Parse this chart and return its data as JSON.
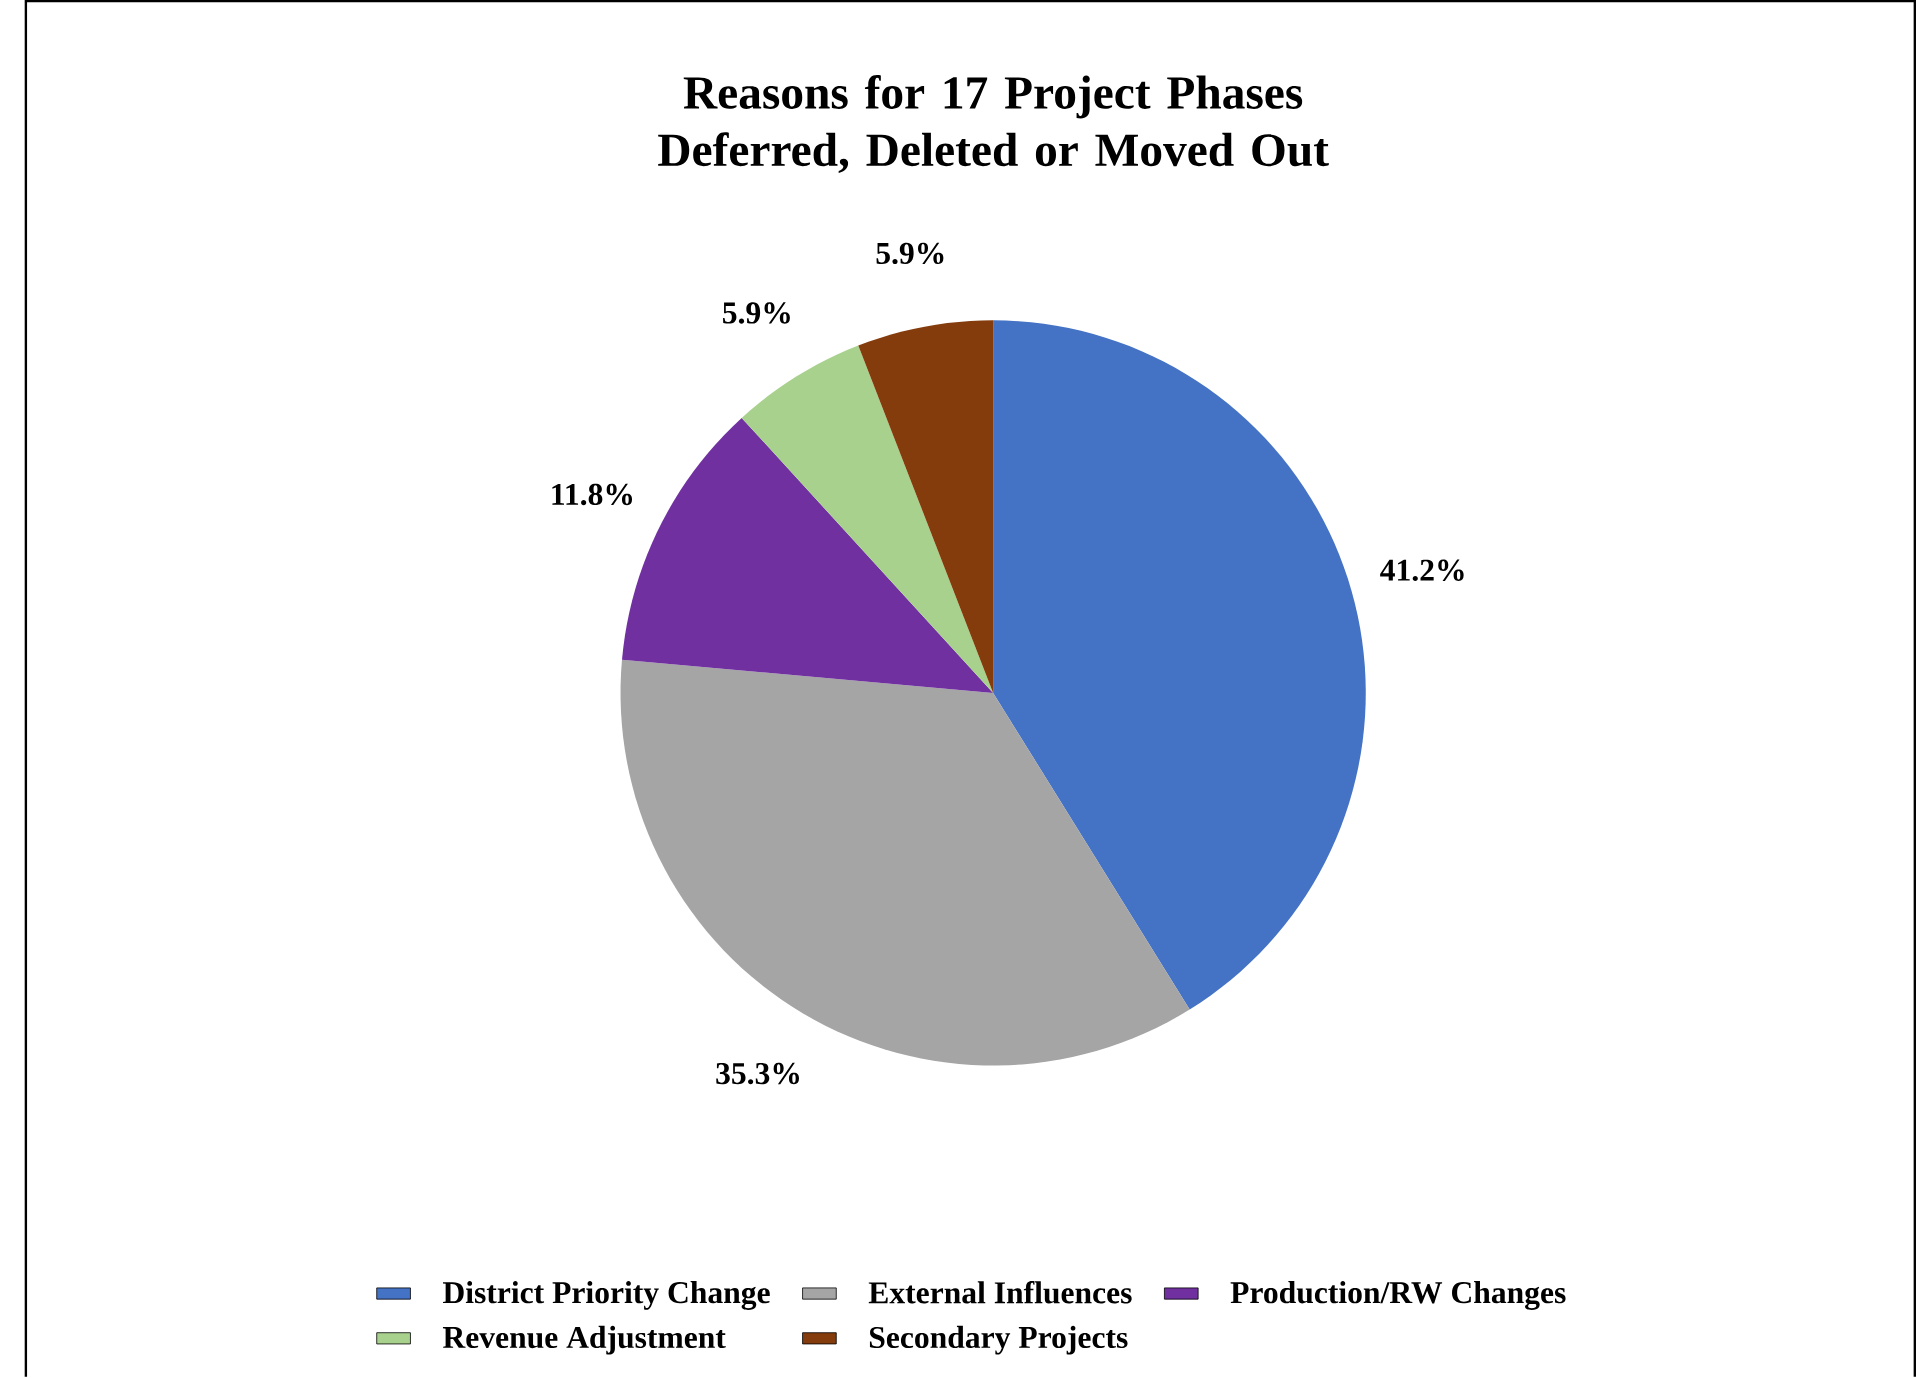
{
  "chart_data": {
    "type": "pie",
    "title": "Reasons for 17 Project Phases\nDeferred, Deleted or Moved Out",
    "categories": [
      "District Priority Change",
      "External Influences",
      "Production/RW Changes",
      "Revenue Adjustment",
      "Secondary Projects"
    ],
    "values": [
      41.2,
      35.3,
      11.8,
      5.9,
      5.9
    ],
    "colors": [
      "#4472c4",
      "#a5a5a5",
      "#7030a0",
      "#a9d18e",
      "#843c0c"
    ],
    "value_labels": [
      "41.2%",
      "35.3%",
      "11.8%",
      "5.9%",
      "5.9%"
    ],
    "legend": "bottom"
  }
}
